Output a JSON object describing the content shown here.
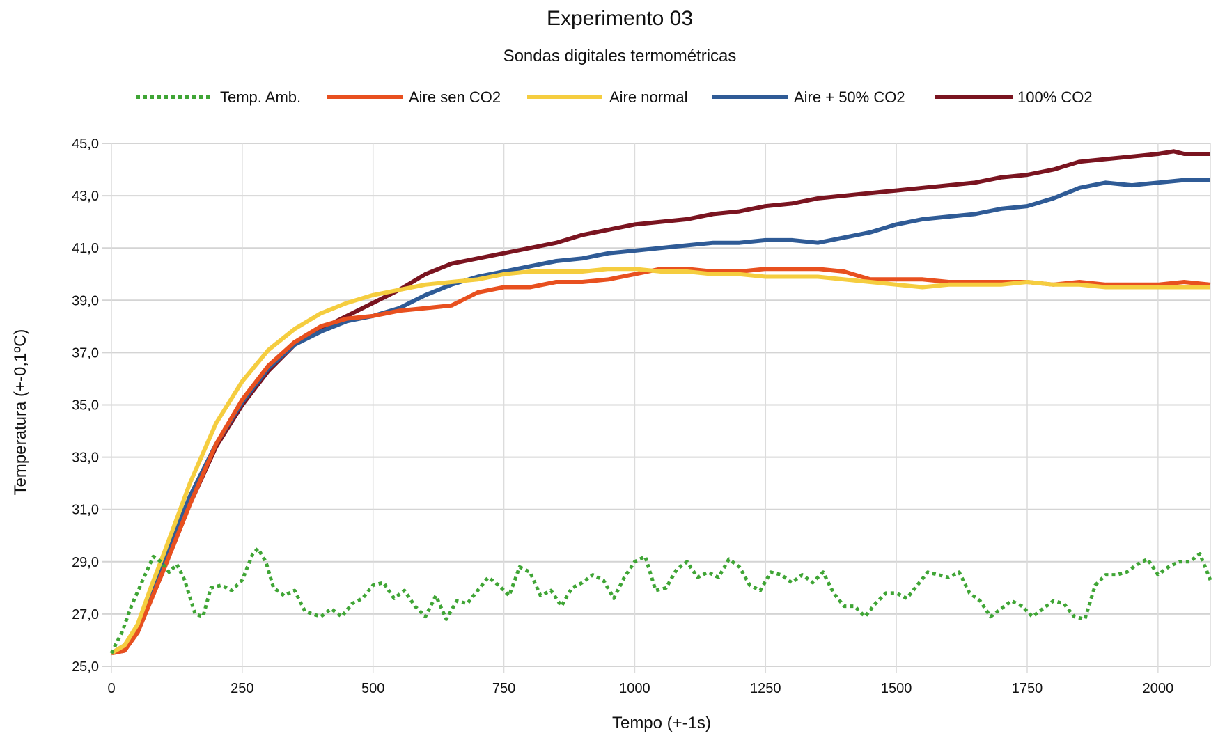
{
  "chart_data": {
    "type": "line",
    "title": "Experimento 03",
    "subtitle": "Sondas digitales termométricas",
    "xlabel": "Tempo (+-1s)",
    "ylabel": "Temperatura (+-0,1ºC)",
    "xlim": [
      0,
      2100
    ],
    "ylim": [
      25,
      45
    ],
    "xticks": [
      0,
      250,
      500,
      750,
      1000,
      1250,
      1500,
      1750,
      2000
    ],
    "xtick_labels": [
      "0",
      "250",
      "500",
      "750",
      "1000",
      "1250",
      "1500",
      "1750",
      "2000"
    ],
    "yticks": [
      25,
      27,
      29,
      31,
      33,
      35,
      37,
      39,
      41,
      43,
      45
    ],
    "ytick_labels": [
      "25,0",
      "27,0",
      "29,0",
      "31,0",
      "33,0",
      "35,0",
      "37,0",
      "39,0",
      "41,0",
      "43,0",
      "45,0"
    ],
    "grid": true,
    "legend_position": "top",
    "series": [
      {
        "name": "Temp. Amb.",
        "color": "#3fa535",
        "style": "dotted",
        "x": [
          0,
          20,
          40,
          60,
          80,
          95,
          110,
          125,
          140,
          160,
          175,
          190,
          210,
          230,
          250,
          270,
          280,
          295,
          310,
          330,
          350,
          370,
          385,
          400,
          420,
          440,
          460,
          480,
          500,
          520,
          540,
          560,
          580,
          600,
          620,
          640,
          660,
          680,
          700,
          720,
          740,
          760,
          780,
          800,
          820,
          840,
          860,
          880,
          900,
          920,
          940,
          960,
          980,
          1000,
          1020,
          1040,
          1060,
          1080,
          1100,
          1120,
          1140,
          1160,
          1180,
          1200,
          1220,
          1240,
          1260,
          1280,
          1300,
          1320,
          1340,
          1360,
          1380,
          1400,
          1420,
          1440,
          1460,
          1480,
          1500,
          1520,
          1540,
          1560,
          1580,
          1600,
          1620,
          1640,
          1660,
          1680,
          1700,
          1720,
          1740,
          1760,
          1780,
          1800,
          1820,
          1840,
          1860,
          1880,
          1900,
          1920,
          1940,
          1960,
          1980,
          2000,
          2020,
          2040,
          2060,
          2080,
          2100
        ],
        "y": [
          25.5,
          26.3,
          27.4,
          28.3,
          29.2,
          29.0,
          28.6,
          28.9,
          28.3,
          27.0,
          26.9,
          28.0,
          28.1,
          27.9,
          28.3,
          29.3,
          29.5,
          29.0,
          28.0,
          27.7,
          27.9,
          27.1,
          27.0,
          26.9,
          27.2,
          26.9,
          27.4,
          27.6,
          28.1,
          28.2,
          27.6,
          27.9,
          27.3,
          26.9,
          27.7,
          26.8,
          27.5,
          27.4,
          27.9,
          28.4,
          28.1,
          27.7,
          28.8,
          28.6,
          27.7,
          27.9,
          27.3,
          28.0,
          28.2,
          28.5,
          28.3,
          27.6,
          28.4,
          29.0,
          29.2,
          27.9,
          28.0,
          28.7,
          29.0,
          28.4,
          28.6,
          28.4,
          29.1,
          28.8,
          28.1,
          27.9,
          28.6,
          28.5,
          28.2,
          28.5,
          28.2,
          28.6,
          27.8,
          27.3,
          27.3,
          26.9,
          27.4,
          27.8,
          27.8,
          27.6,
          28.1,
          28.6,
          28.5,
          28.4,
          28.6,
          27.8,
          27.5,
          26.9,
          27.2,
          27.5,
          27.3,
          26.9,
          27.2,
          27.5,
          27.4,
          26.9,
          26.8,
          28.1,
          28.5,
          28.5,
          28.6,
          28.9,
          29.1,
          28.5,
          28.8,
          29.0,
          29.0,
          29.3,
          28.3
        ],
        "values_note": "values estimated from plot"
      },
      {
        "name": "Aire sen CO2",
        "color": "#e8501f",
        "style": "solid",
        "x": [
          0,
          25,
          50,
          75,
          100,
          150,
          200,
          250,
          300,
          350,
          400,
          450,
          500,
          550,
          600,
          650,
          700,
          750,
          800,
          850,
          900,
          950,
          1000,
          1050,
          1100,
          1150,
          1200,
          1250,
          1300,
          1350,
          1400,
          1450,
          1500,
          1550,
          1600,
          1650,
          1700,
          1750,
          1800,
          1850,
          1900,
          1950,
          2000,
          2050,
          2100
        ],
        "y": [
          25.5,
          25.6,
          26.3,
          27.5,
          28.7,
          31.2,
          33.5,
          35.2,
          36.5,
          37.4,
          38.0,
          38.3,
          38.4,
          38.6,
          38.7,
          38.8,
          39.3,
          39.5,
          39.5,
          39.7,
          39.7,
          39.8,
          40.0,
          40.2,
          40.2,
          40.1,
          40.1,
          40.2,
          40.2,
          40.2,
          40.1,
          39.8,
          39.8,
          39.8,
          39.7,
          39.7,
          39.7,
          39.7,
          39.6,
          39.7,
          39.6,
          39.6,
          39.6,
          39.7,
          39.6
        ],
        "values_note": "values estimated from plot"
      },
      {
        "name": "Aire normal",
        "color": "#f5cd3f",
        "style": "solid",
        "x": [
          0,
          25,
          50,
          75,
          100,
          150,
          200,
          250,
          300,
          350,
          400,
          450,
          500,
          550,
          600,
          650,
          700,
          750,
          800,
          850,
          900,
          950,
          1000,
          1050,
          1100,
          1150,
          1200,
          1250,
          1300,
          1350,
          1400,
          1450,
          1500,
          1550,
          1600,
          1650,
          1700,
          1750,
          1800,
          1850,
          1900,
          1950,
          2000,
          2050,
          2100
        ],
        "y": [
          25.5,
          25.8,
          26.6,
          28.0,
          29.3,
          32.0,
          34.3,
          35.9,
          37.1,
          37.9,
          38.5,
          38.9,
          39.2,
          39.4,
          39.6,
          39.7,
          39.8,
          40.0,
          40.1,
          40.1,
          40.1,
          40.2,
          40.2,
          40.1,
          40.1,
          40.0,
          40.0,
          39.9,
          39.9,
          39.9,
          39.8,
          39.7,
          39.6,
          39.5,
          39.6,
          39.6,
          39.6,
          39.7,
          39.6,
          39.6,
          39.5,
          39.5,
          39.5,
          39.5,
          39.5
        ],
        "values_note": "values estimated from plot"
      },
      {
        "name": "Aire + 50% CO2",
        "color": "#2f5b96",
        "style": "solid",
        "x": [
          0,
          25,
          50,
          75,
          100,
          150,
          200,
          250,
          300,
          350,
          400,
          450,
          500,
          550,
          600,
          650,
          700,
          750,
          800,
          850,
          900,
          950,
          1000,
          1050,
          1100,
          1150,
          1200,
          1250,
          1300,
          1350,
          1400,
          1450,
          1500,
          1550,
          1600,
          1650,
          1700,
          1750,
          1800,
          1850,
          1900,
          1950,
          2000,
          2050,
          2100
        ],
        "y": [
          25.5,
          25.8,
          26.5,
          27.8,
          29.0,
          31.5,
          33.5,
          35.1,
          36.4,
          37.3,
          37.8,
          38.2,
          38.4,
          38.7,
          39.2,
          39.6,
          39.9,
          40.1,
          40.3,
          40.5,
          40.6,
          40.8,
          40.9,
          41.0,
          41.1,
          41.2,
          41.2,
          41.3,
          41.3,
          41.2,
          41.4,
          41.6,
          41.9,
          42.1,
          42.2,
          42.3,
          42.5,
          42.6,
          42.9,
          43.3,
          43.5,
          43.4,
          43.5,
          43.6,
          43.6
        ],
        "values_note": "values estimated from plot"
      },
      {
        "name": "100% CO2",
        "color": "#7a1420",
        "style": "solid",
        "x": [
          0,
          25,
          50,
          75,
          100,
          150,
          200,
          250,
          300,
          350,
          400,
          450,
          500,
          550,
          600,
          650,
          700,
          750,
          800,
          850,
          900,
          950,
          1000,
          1050,
          1100,
          1150,
          1200,
          1250,
          1300,
          1350,
          1400,
          1450,
          1500,
          1550,
          1600,
          1650,
          1700,
          1750,
          1800,
          1850,
          1900,
          1950,
          2000,
          2030,
          2050,
          2100
        ],
        "y": [
          25.5,
          25.6,
          26.3,
          27.5,
          28.7,
          31.2,
          33.4,
          35.0,
          36.3,
          37.3,
          37.9,
          38.4,
          38.9,
          39.4,
          40.0,
          40.4,
          40.6,
          40.8,
          41.0,
          41.2,
          41.5,
          41.7,
          41.9,
          42.0,
          42.1,
          42.3,
          42.4,
          42.6,
          42.7,
          42.9,
          43.0,
          43.1,
          43.2,
          43.3,
          43.4,
          43.5,
          43.7,
          43.8,
          44.0,
          44.3,
          44.4,
          44.5,
          44.6,
          44.7,
          44.6,
          44.6
        ],
        "values_note": "values estimated from plot"
      }
    ]
  }
}
